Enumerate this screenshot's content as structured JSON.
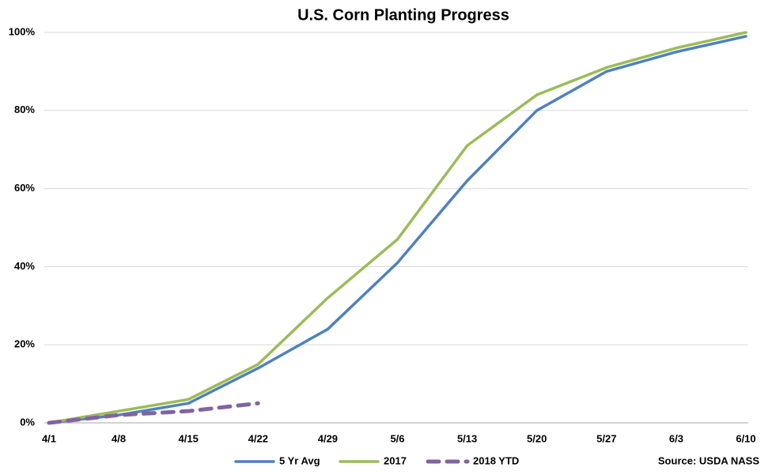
{
  "chart_data": {
    "type": "line",
    "title": "U.S. Corn Planting Progress",
    "categories": [
      "4/1",
      "4/8",
      "4/15",
      "4/22",
      "4/29",
      "5/6",
      "5/13",
      "5/20",
      "5/27",
      "6/3",
      "6/10"
    ],
    "series": [
      {
        "name": "5 Yr Avg",
        "color": "#4f81bd",
        "style": "solid",
        "values": [
          0,
          2,
          5,
          14,
          24,
          41,
          62,
          80,
          90,
          95,
          99
        ]
      },
      {
        "name": "2017",
        "color": "#9bbb59",
        "style": "solid",
        "values": [
          0,
          3,
          6,
          15,
          32,
          47,
          71,
          84,
          91,
          96,
          100
        ]
      },
      {
        "name": "2018 YTD",
        "color": "#8064a2",
        "style": "dashed",
        "values": [
          0,
          2,
          3,
          5,
          null,
          null,
          null,
          null,
          null,
          null,
          null
        ]
      }
    ],
    "ylim": [
      0,
      100
    ],
    "yticks": [
      {
        "value": 0,
        "label": "0%"
      },
      {
        "value": 20,
        "label": "20%"
      },
      {
        "value": 40,
        "label": "40%"
      },
      {
        "value": 60,
        "label": "60%"
      },
      {
        "value": 80,
        "label": "80%"
      },
      {
        "value": 100,
        "label": "100%"
      }
    ],
    "grid": true,
    "legend": "bottom",
    "source": "Source: USDA NASS"
  }
}
